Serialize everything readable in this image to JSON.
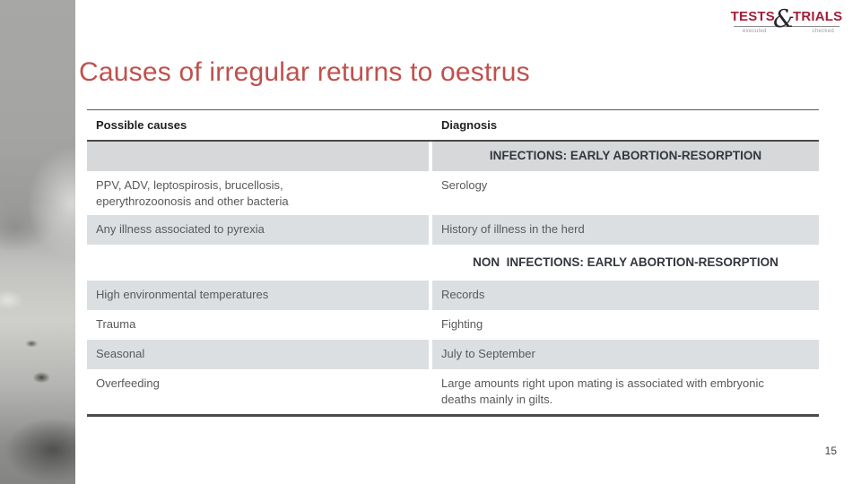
{
  "slide": {
    "title": "Causes of irregular returns to oestrus",
    "page_number": "15"
  },
  "logo": {
    "word_left": "TESTS",
    "ampersand": "&",
    "word_right": "TRIALS",
    "tagline_left": "executed",
    "tagline_right": "checked"
  },
  "side_image": {
    "alt": "grayscale photo of pigs"
  },
  "table": {
    "headers": {
      "causes": "Possible causes",
      "diagnosis": "Diagnosis"
    },
    "section1": "INFECTIONS: EARLY ABORTION-RESORPTION",
    "section2": "NON  INFECTIONS: EARLY ABORTION-RESORPTION",
    "rows": [
      {
        "cause": "PPV, ADV, leptospirosis, brucellosis, eperythrozoonosis and other bacteria",
        "diagnosis": "Serology"
      },
      {
        "cause": "Any illness associated to pyrexia",
        "diagnosis": "History of illness in the herd"
      },
      {
        "cause": "High environmental temperatures",
        "diagnosis": "Records"
      },
      {
        "cause": "Trauma",
        "diagnosis": "Fighting"
      },
      {
        "cause": "Seasonal",
        "diagnosis": "July to September"
      },
      {
        "cause": "Overfeeding",
        "diagnosis": "Large amounts right upon mating is associated with embryonic deaths mainly in gilts."
      }
    ]
  },
  "colors": {
    "title_accent": "#c0504d",
    "logo_brand": "#a21e39",
    "band_row": "#dcdfe2",
    "section_band": "#d6d8da",
    "border_dark": "#4a4a4a"
  }
}
